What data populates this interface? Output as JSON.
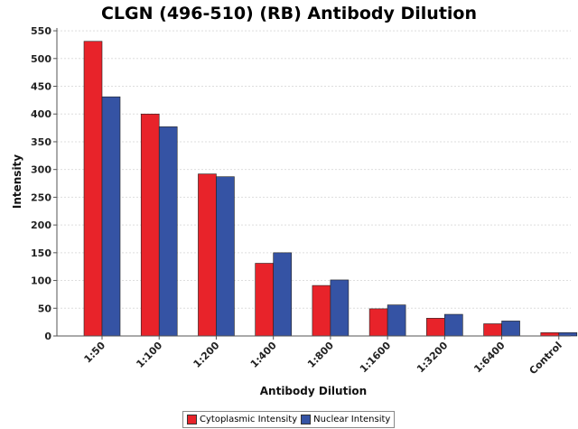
{
  "chart_data": {
    "type": "bar",
    "title": "CLGN (496-510) (RB) Antibody Dilution",
    "xlabel": "Antibody Dilution",
    "ylabel": "Intensity",
    "categories": [
      "1:50",
      "1:100",
      "1:200",
      "1:400",
      "1:800",
      "1:1600",
      "1:3200",
      "1:6400",
      "Control"
    ],
    "series": [
      {
        "name": "Cytoplasmic Intensity",
        "color": "#e8232a",
        "values": [
          531,
          400,
          292,
          131,
          91,
          49,
          32,
          22,
          6
        ]
      },
      {
        "name": "Nuclear Intensity",
        "color": "#3553a4",
        "values": [
          431,
          377,
          287,
          150,
          101,
          56,
          39,
          27,
          6
        ]
      }
    ],
    "ylim": [
      0,
      555
    ],
    "yticks": [
      0,
      50,
      100,
      150,
      200,
      250,
      300,
      350,
      400,
      450,
      500,
      550
    ],
    "grid": true,
    "legend_position": "bottom"
  }
}
